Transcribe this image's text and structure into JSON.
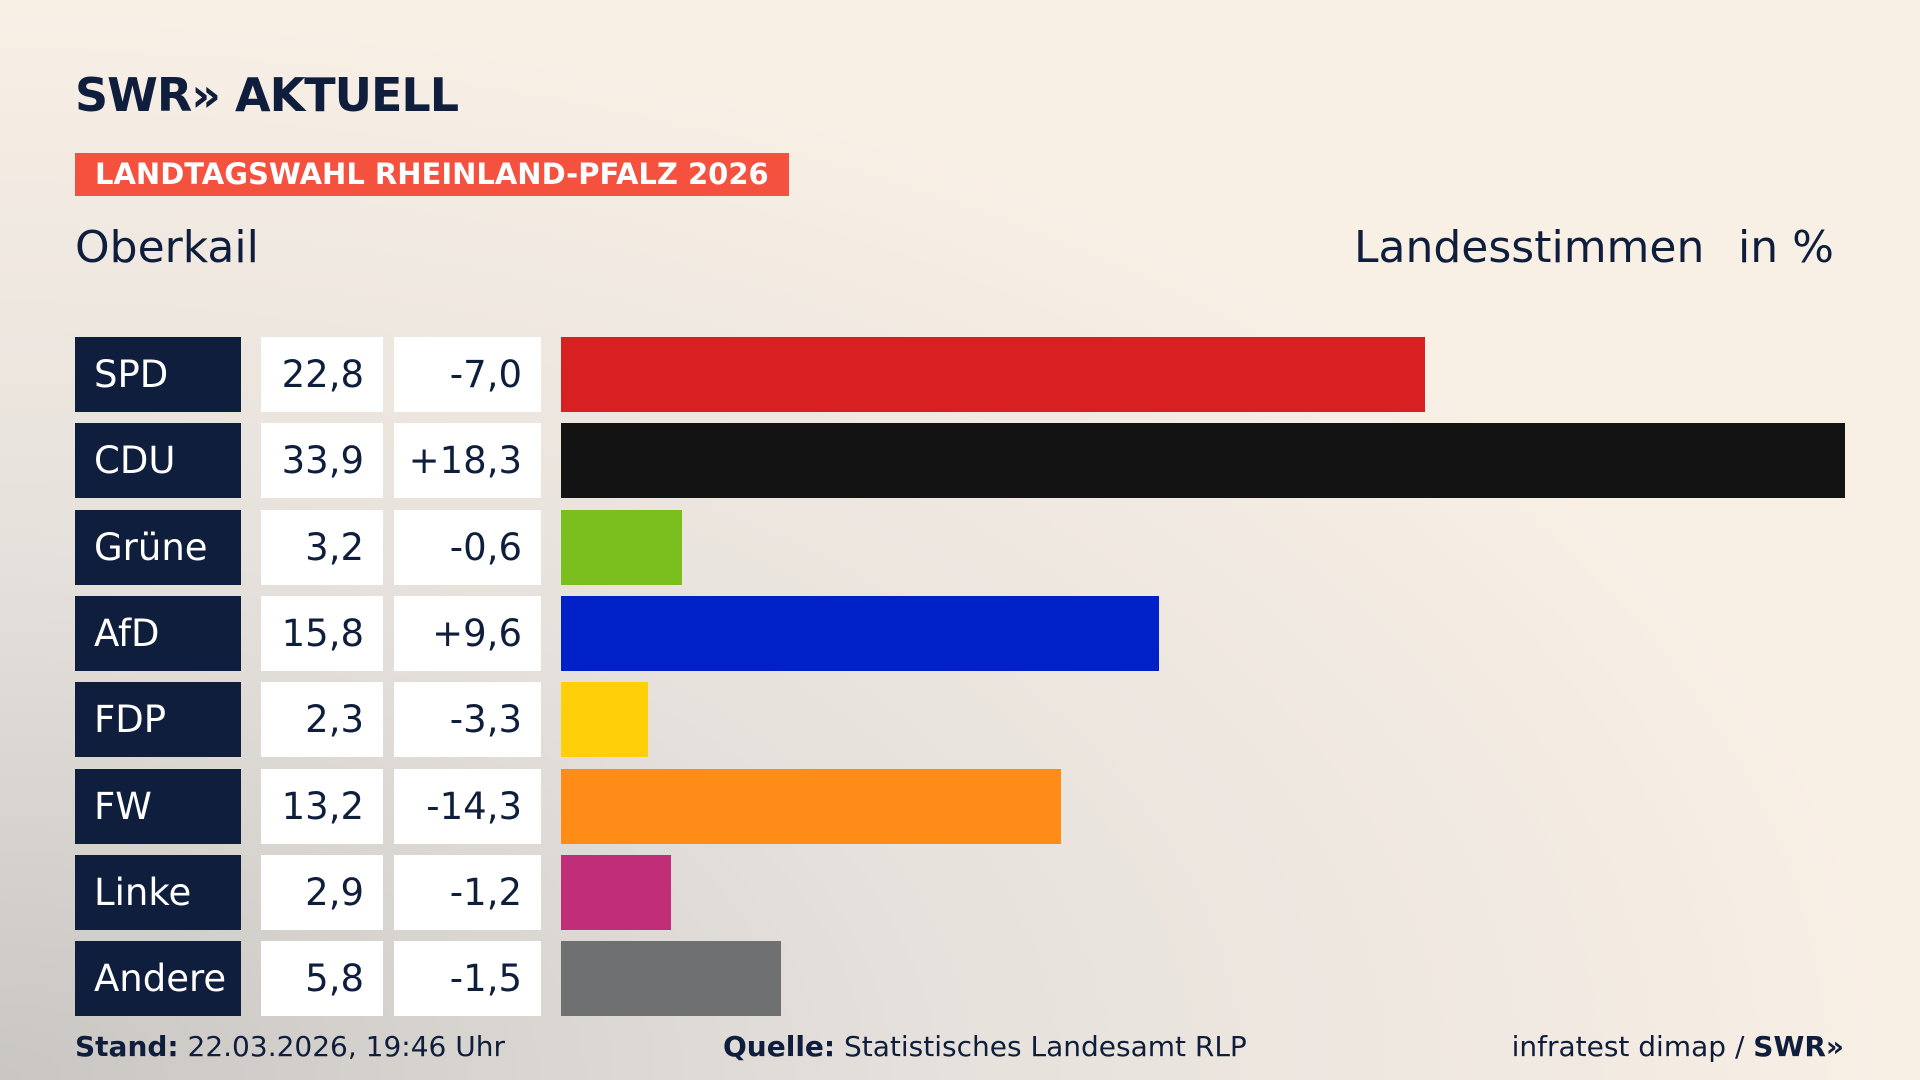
{
  "logo": "SWR» AKTUELL",
  "badge": "LANDTAGSWAHL RHEINLAND-PFALZ 2026",
  "footer": {
    "stand_label": "Stand:",
    "stand": "22.03.2026, 19:46 Uhr",
    "source_label": "Quelle:",
    "source": "Statistisches Landesamt RLP",
    "credit": "infratest dimap /",
    "credit_logo": "SWR»"
  },
  "chart_data": {
    "type": "bar",
    "orientation": "horizontal",
    "title": "Oberkail",
    "subtitle": "Landesstimmen",
    "unit": "in %",
    "categories": [
      "SPD",
      "CDU",
      "Grüne",
      "AfD",
      "FDP",
      "FW",
      "Linke",
      "Andere"
    ],
    "values": [
      22.8,
      33.9,
      3.2,
      15.8,
      2.3,
      13.2,
      2.9,
      5.8
    ],
    "value_labels": [
      "22,8",
      "33,9",
      "3,2",
      "15,8",
      "2,3",
      "13,2",
      "2,9",
      "5,8"
    ],
    "changes": [
      "-7,0",
      "+18,3",
      "-0,6",
      "+9,6",
      "-3,3",
      "-14,3",
      "-1,2",
      "-1,5"
    ],
    "colors": [
      "#d81f21",
      "#131313",
      "#7bbf1f",
      "#0021c8",
      "#ffd00a",
      "#ff8c17",
      "#bf2e77",
      "#6f7072"
    ]
  }
}
